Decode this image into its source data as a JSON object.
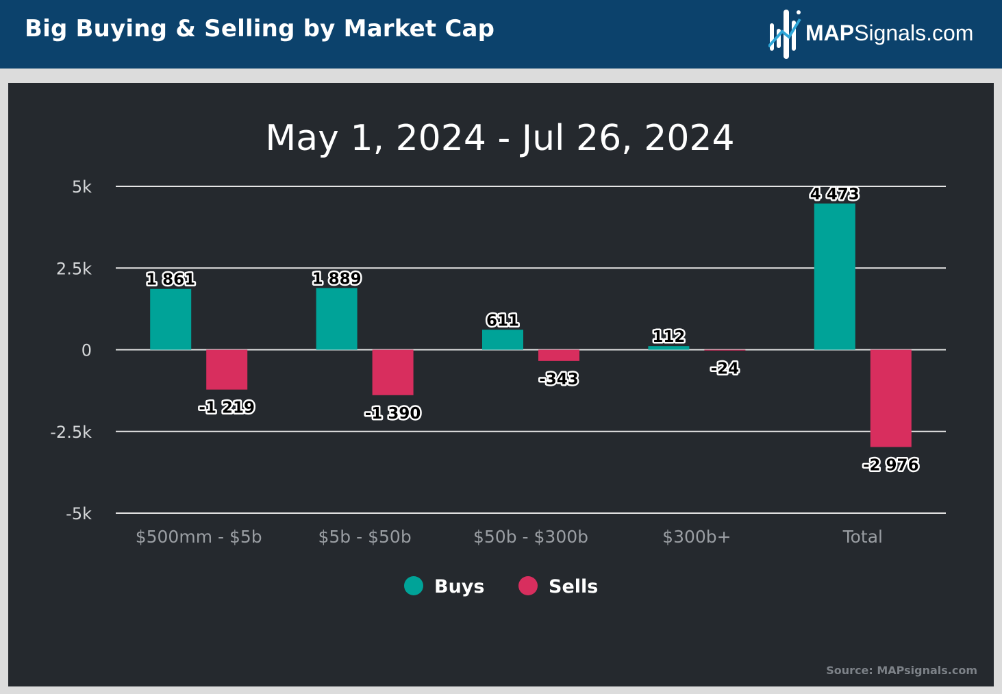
{
  "header": {
    "title": "Big Buying & Selling by Market Cap",
    "logo_bold": "MAP",
    "logo_rest": "Signals.com",
    "background_color": "#0c426c"
  },
  "source": "Source: MAPsignals.com",
  "chart_data": {
    "type": "bar",
    "title": "May 1, 2024 - Jul 26, 2024",
    "xlabel": "",
    "ylabel": "",
    "categories": [
      "$500mm - $5b",
      "$5b - $50b",
      "$50b - $300b",
      "$300b+",
      "Total"
    ],
    "series": [
      {
        "name": "Buys",
        "color": "#00a398",
        "values": [
          1861,
          1889,
          611,
          112,
          4473
        ],
        "labels": [
          "1 861",
          "1 889",
          "611",
          "112",
          "4 473"
        ]
      },
      {
        "name": "Sells",
        "color": "#d82e5e",
        "values": [
          -1219,
          -1390,
          -343,
          -24,
          -2976
        ],
        "labels": [
          "-1 219",
          "-1 390",
          "-343",
          "-24",
          "-2 976"
        ]
      }
    ],
    "ylim": [
      -5000,
      5000
    ],
    "yticks": [
      5000,
      2500,
      0,
      -2500,
      -5000
    ],
    "ytick_labels": [
      "5k",
      "2.5k",
      "0",
      "-2.5k",
      "-5k"
    ],
    "grid": true,
    "legend_position": "bottom-center",
    "background_color": "#25292e"
  }
}
